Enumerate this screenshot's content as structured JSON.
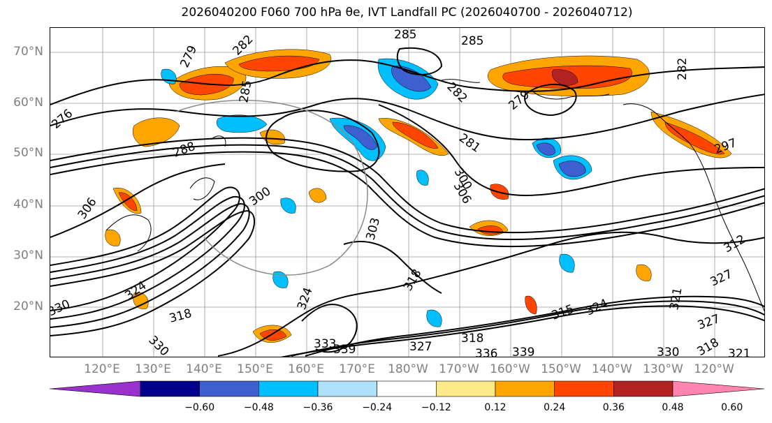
{
  "title": "2026040200 F060 700 hPa θe, IVT Landfall PC (2026040700 - 2026040712)",
  "lat_labels": [
    "70°N",
    "60°N",
    "50°N",
    "40°N",
    "30°N",
    "20°N"
  ],
  "lon_labels": [
    "120°E",
    "130°E",
    "140°E",
    "150°E",
    "160°E",
    "170°E",
    "180°W",
    "170°W",
    "160°W",
    "150°W",
    "140°W",
    "130°W",
    "120°W"
  ],
  "colorbar": {
    "ticks": [
      "−0.60",
      "−0.48",
      "−0.36",
      "−0.24",
      "−0.12",
      "0.12",
      "0.24",
      "0.36",
      "0.48",
      "0.60"
    ],
    "colors": [
      "#9932cc",
      "#00008b",
      "#3d5fd0",
      "#00bfff",
      "#ade2fa",
      "#ffffff",
      "#ffea8a",
      "#ffa500",
      "#ff4500",
      "#b22222",
      "#ff85b0"
    ]
  },
  "contour_labels": [
    {
      "text": "285"
    },
    {
      "text": "285"
    },
    {
      "text": "282"
    },
    {
      "text": "279"
    },
    {
      "text": "285"
    },
    {
      "text": "282"
    },
    {
      "text": "279"
    },
    {
      "text": "281"
    },
    {
      "text": "282"
    },
    {
      "text": "297"
    },
    {
      "text": "276"
    },
    {
      "text": "288"
    },
    {
      "text": "300"
    },
    {
      "text": "300"
    },
    {
      "text": "306"
    },
    {
      "text": "306"
    },
    {
      "text": "303"
    },
    {
      "text": "318"
    },
    {
      "text": "312"
    },
    {
      "text": "327"
    },
    {
      "text": "324"
    },
    {
      "text": "324"
    },
    {
      "text": "318"
    },
    {
      "text": "330"
    },
    {
      "text": "330"
    },
    {
      "text": "333"
    },
    {
      "text": "339"
    },
    {
      "text": "327"
    },
    {
      "text": "318"
    },
    {
      "text": "336"
    },
    {
      "text": "339"
    },
    {
      "text": "315"
    },
    {
      "text": "324"
    },
    {
      "text": "321"
    },
    {
      "text": "327"
    },
    {
      "text": "330"
    },
    {
      "text": "318"
    },
    {
      "text": "321"
    }
  ]
}
